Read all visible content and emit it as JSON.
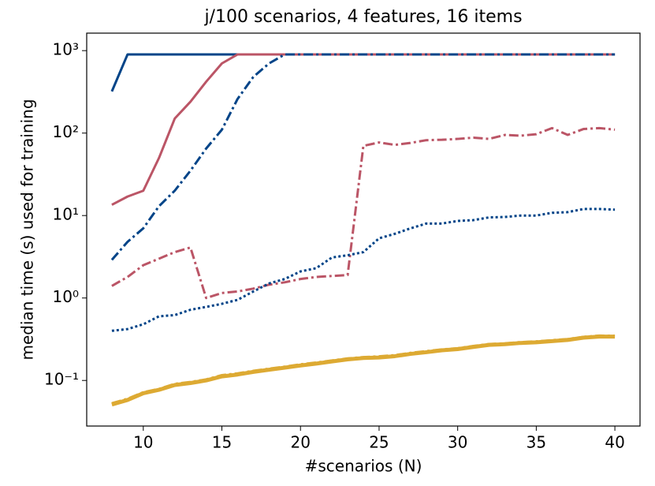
{
  "chart_data": {
    "type": "line",
    "title": "j/100 scenarios, 4 features, 16 items",
    "xlabel": "#scenarios (N)",
    "ylabel": "median time (s) used for training",
    "yscale": "log",
    "x": [
      8,
      9,
      10,
      11,
      12,
      13,
      14,
      15,
      16,
      17,
      18,
      19,
      20,
      21,
      22,
      23,
      24,
      25,
      26,
      27,
      28,
      29,
      30,
      31,
      32,
      33,
      34,
      35,
      36,
      37,
      38,
      39,
      40
    ],
    "xlim": [
      6.4,
      41.6
    ],
    "xticks": [
      10,
      15,
      20,
      25,
      30,
      35,
      40
    ],
    "ylim": [
      0.028,
      1630
    ],
    "yticks": [
      {
        "value": 0.1,
        "label": "10⁻¹"
      },
      {
        "value": 1,
        "label": "10⁰"
      },
      {
        "value": 10,
        "label": "10¹"
      },
      {
        "value": 100,
        "label": "10²"
      },
      {
        "value": 1000,
        "label": "10³"
      }
    ],
    "series": [
      {
        "color": "#004488",
        "linestyle": "solid",
        "linewidth": 3,
        "values": [
          320,
          900,
          900,
          900,
          900,
          900,
          900,
          900,
          900,
          900,
          900,
          900,
          900,
          900,
          900,
          900,
          900,
          900,
          900,
          900,
          900,
          900,
          900,
          900,
          900,
          900,
          900,
          900,
          900,
          900,
          900,
          900,
          900
        ]
      },
      {
        "color": "#bb5566",
        "linestyle": "solid",
        "linewidth": 3,
        "values": [
          13.5,
          17,
          20,
          50,
          150,
          240,
          420,
          700,
          900,
          900,
          900,
          900,
          900,
          900,
          900,
          900,
          900,
          900,
          900,
          900,
          900,
          900,
          900,
          900,
          900,
          900,
          900,
          900,
          900,
          900,
          900,
          900,
          900
        ]
      },
      {
        "color": "#004488",
        "linestyle": "dashdot",
        "linewidth": 3,
        "values": [
          2.9,
          4.8,
          7,
          13,
          20,
          35,
          65,
          110,
          260,
          480,
          700,
          900,
          900,
          900,
          900,
          900,
          900,
          900,
          900,
          900,
          900,
          900,
          900,
          900,
          900,
          900,
          900,
          900,
          900,
          900,
          900,
          900,
          900
        ]
      },
      {
        "color": "#bb5566",
        "linestyle": "dashdot",
        "linewidth": 3,
        "values": [
          1.4,
          1.8,
          2.5,
          3,
          3.6,
          4.1,
          1.0,
          1.15,
          1.2,
          1.3,
          1.45,
          1.55,
          1.7,
          1.8,
          1.85,
          1.9,
          70,
          77,
          72,
          76,
          82,
          83,
          85,
          88,
          85,
          95,
          93,
          97,
          115,
          95,
          112,
          115,
          110
        ]
      },
      {
        "color": "#004488",
        "linestyle": "dotted",
        "linewidth": 3,
        "values": [
          0.4,
          0.42,
          0.48,
          0.6,
          0.62,
          0.72,
          0.78,
          0.85,
          0.95,
          1.2,
          1.5,
          1.7,
          2.1,
          2.3,
          3.1,
          3.3,
          3.6,
          5.3,
          6,
          7,
          8,
          8,
          8.6,
          8.8,
          9.5,
          9.6,
          10,
          10,
          10.8,
          11,
          12,
          12,
          11.8
        ]
      },
      {
        "color": "#ddaa33",
        "linestyle": "solid",
        "linewidth": 5,
        "values": [
          0.051,
          0.058,
          0.07,
          0.077,
          0.088,
          0.093,
          0.1,
          0.112,
          0.118,
          0.127,
          0.135,
          0.143,
          0.152,
          0.16,
          0.17,
          0.18,
          0.187,
          0.19,
          0.197,
          0.21,
          0.22,
          0.232,
          0.24,
          0.255,
          0.27,
          0.275,
          0.285,
          0.29,
          0.3,
          0.31,
          0.33,
          0.34,
          0.34
        ]
      },
      {
        "color": "#ddaa33",
        "linestyle": "dashdot",
        "linewidth": 3,
        "values": [
          0.053,
          0.06,
          0.072,
          0.079,
          0.091,
          0.096,
          0.103,
          0.116,
          0.122,
          0.131,
          0.139,
          0.147,
          0.157,
          0.165,
          0.175,
          0.185,
          0.192,
          0.196,
          0.203,
          0.216,
          0.227,
          0.238,
          0.246,
          0.262,
          0.277,
          0.282,
          0.292,
          0.298,
          0.308,
          0.318,
          0.338,
          0.35,
          0.348
        ]
      }
    ]
  }
}
